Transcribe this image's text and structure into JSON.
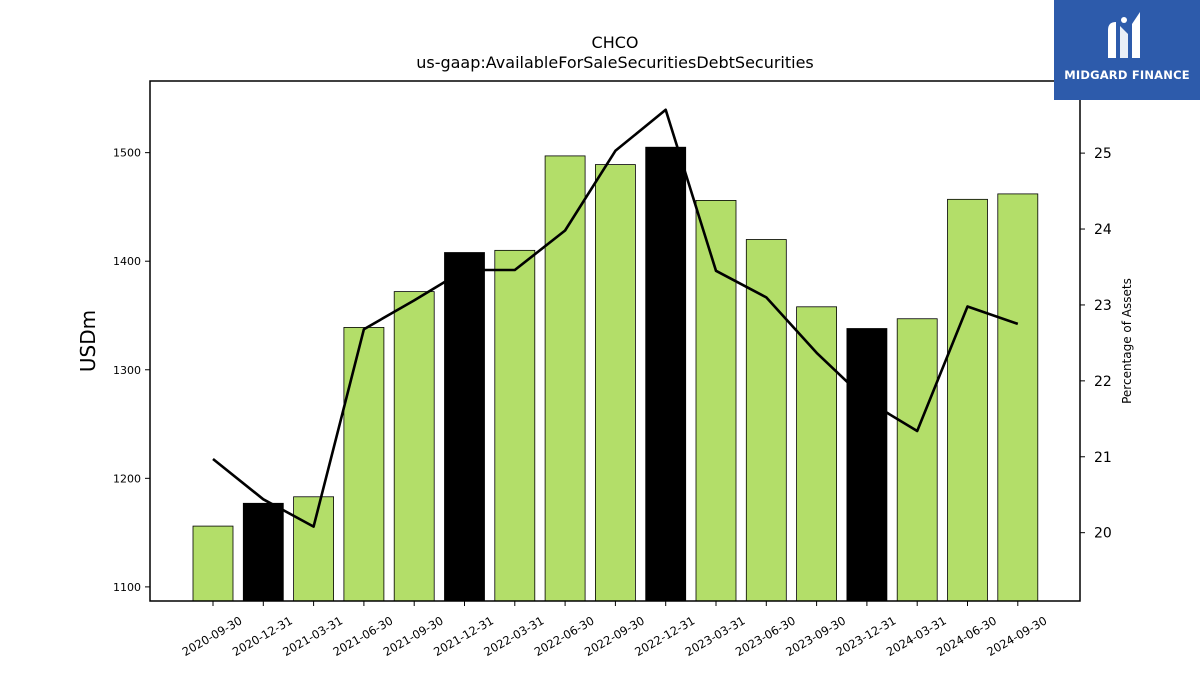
{
  "brand": {
    "name": "MIDGARD FINANCE",
    "colors": {
      "background": "#2d5bab",
      "text": "#ffffff"
    }
  },
  "chart_data": {
    "type": "bar",
    "title": "CHCO",
    "subtitle": "us-gaap:AvailableForSaleSecuritiesDebtSecurities",
    "xlabel": "",
    "ylabel": "USDm",
    "y2label": "Percentage of Assets",
    "categories": [
      "2020-09-30",
      "2020-12-31",
      "2021-03-31",
      "2021-06-30",
      "2021-09-30",
      "2021-12-31",
      "2022-03-31",
      "2022-06-30",
      "2022-09-30",
      "2022-12-31",
      "2023-03-31",
      "2023-06-30",
      "2023-09-30",
      "2023-12-31",
      "2024-03-31",
      "2024-06-30",
      "2024-09-30"
    ],
    "series": [
      {
        "axis": "left",
        "type": "bar",
        "values": [
          1156,
          1177,
          1183,
          1339,
          1372,
          1408,
          1410,
          1497,
          1489,
          1505,
          1456,
          1420,
          1358,
          1338,
          1347,
          1457,
          1462
        ],
        "highlight": [
          false,
          true,
          false,
          false,
          false,
          true,
          false,
          false,
          false,
          true,
          false,
          false,
          false,
          true,
          false,
          false,
          false
        ]
      },
      {
        "axis": "right",
        "type": "line",
        "values": [
          20.97,
          20.44,
          20.08,
          22.68,
          23.06,
          23.46,
          23.46,
          23.98,
          25.03,
          25.57,
          23.45,
          23.1,
          22.37,
          21.74,
          21.34,
          22.98,
          22.75
        ]
      }
    ],
    "ylim": [
      1087,
      1566
    ],
    "y2lim": [
      19.1,
      25.95
    ],
    "yticks": [
      1100,
      1200,
      1300,
      1400,
      1500
    ],
    "y2ticks": [
      20,
      21,
      22,
      23,
      24,
      25
    ],
    "grid": false,
    "colors": {
      "bar": "#b3de69",
      "bar_highlight": "#000000",
      "line": "#000000",
      "edge": "#000000"
    }
  }
}
